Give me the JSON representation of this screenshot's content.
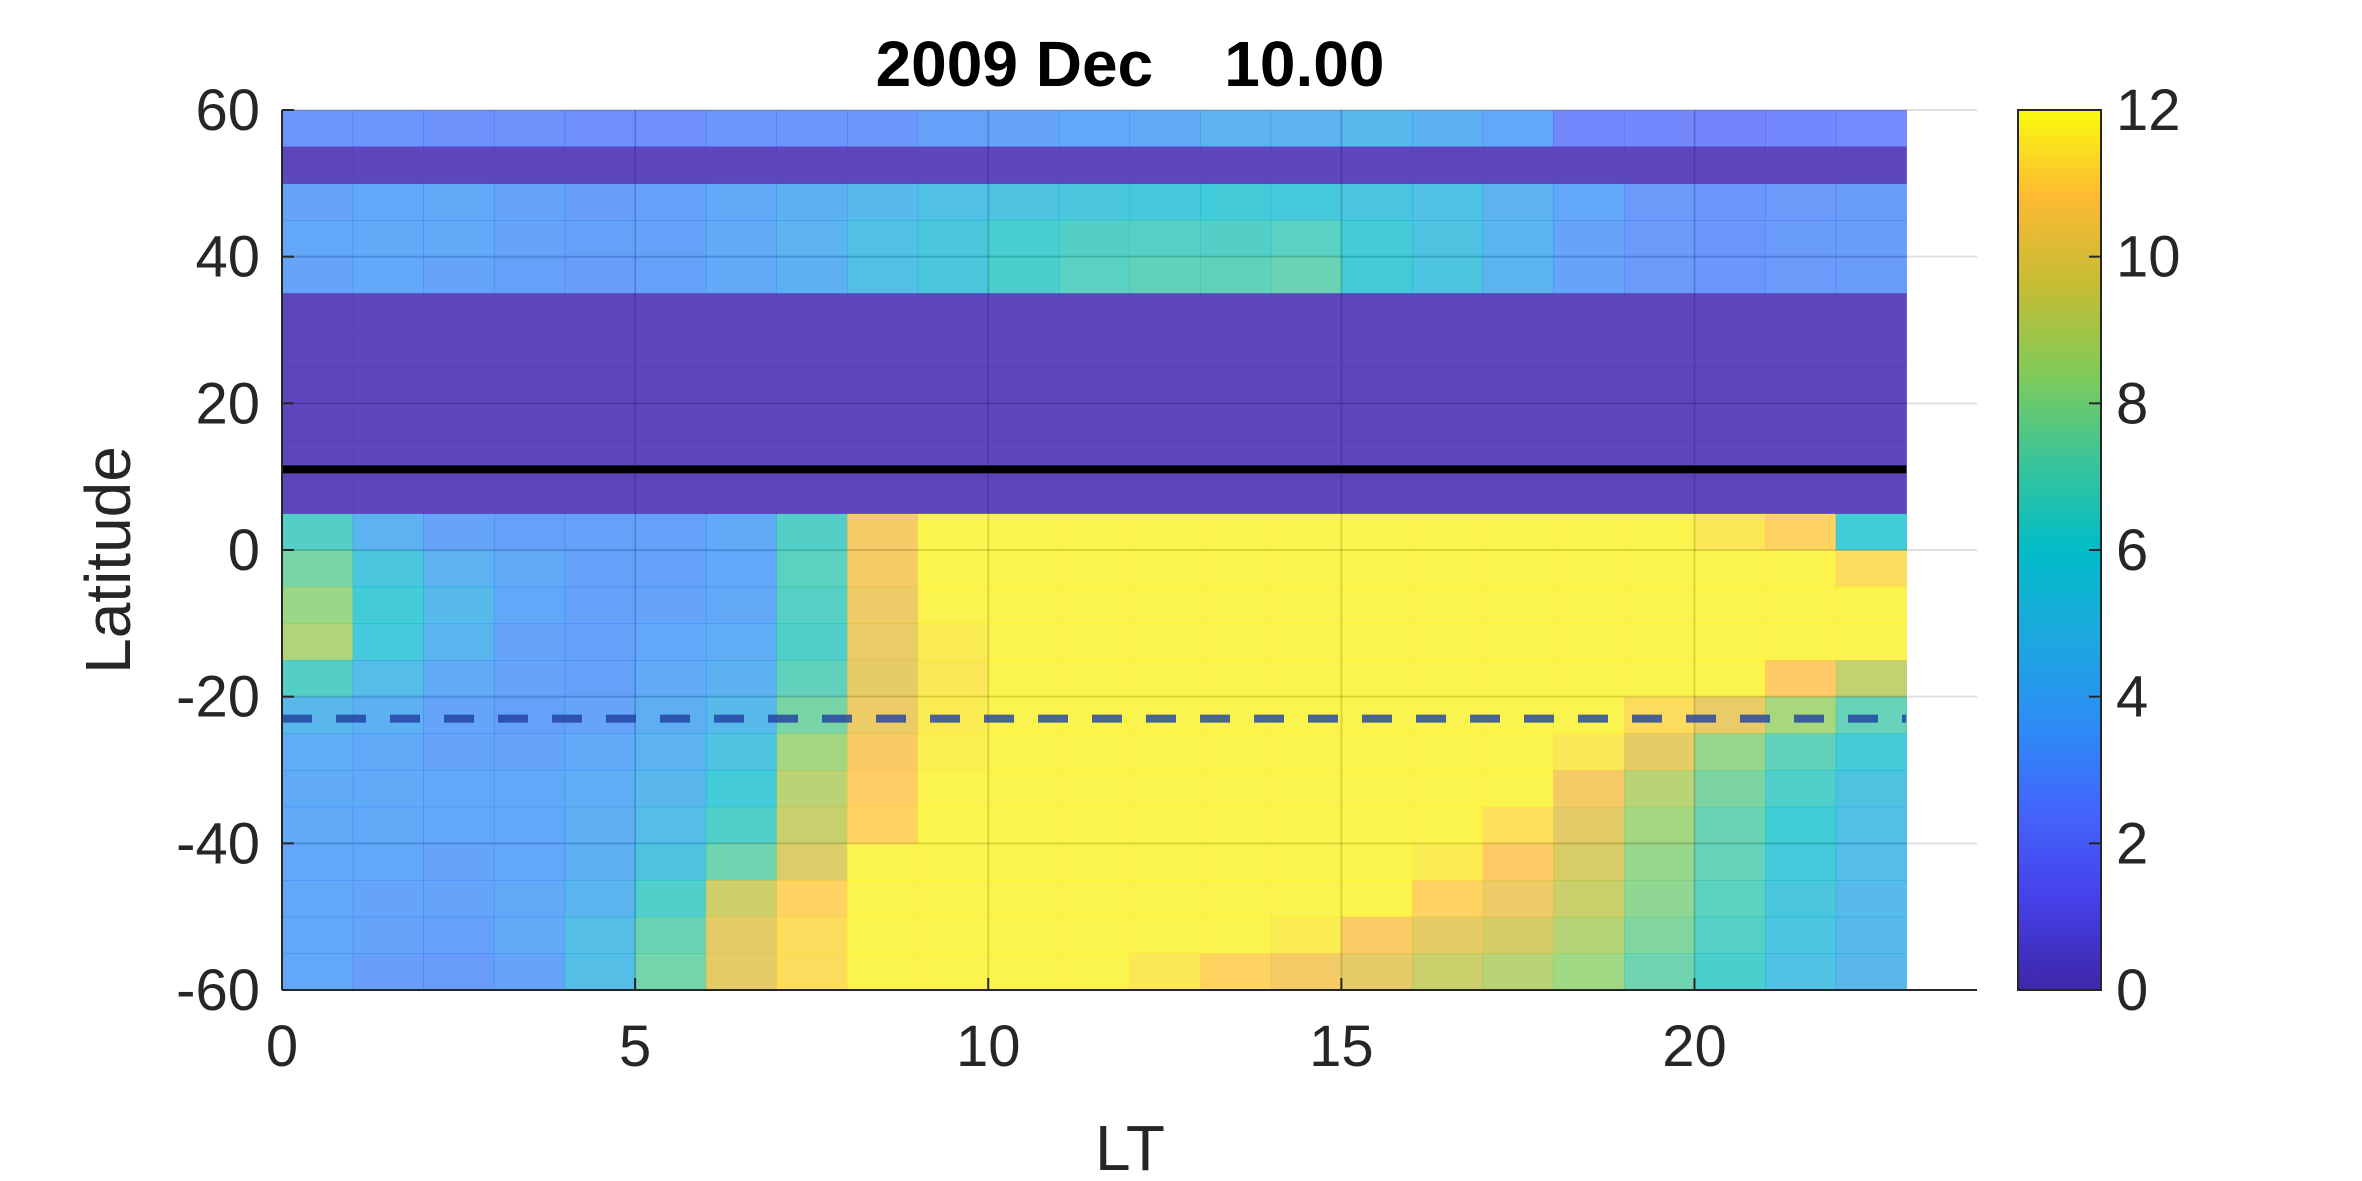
{
  "chart_data": {
    "type": "heatmap",
    "title": "2009 Dec    10.00",
    "xlabel": "LT",
    "ylabel": "Latitude",
    "xlim": [
      0,
      24
    ],
    "ylim": [
      -60,
      60
    ],
    "x_ticks": [
      "0",
      "5",
      "10",
      "15",
      "20"
    ],
    "y_ticks": [
      "60",
      "40",
      "20",
      "0",
      "-20",
      "-40",
      "-60"
    ],
    "colorbar": {
      "clim": [
        0,
        12
      ],
      "ticks": [
        "0",
        "2",
        "4",
        "6",
        "8",
        "10",
        "12"
      ],
      "colormap": "parula"
    },
    "grid": true,
    "x_centers": [
      0.5,
      1.5,
      2.5,
      3.5,
      4.5,
      5.5,
      6.5,
      7.5,
      8.5,
      9.5,
      10.5,
      11.5,
      12.5,
      13.5,
      14.5,
      15.5,
      16.5,
      17.5,
      18.5,
      19.5,
      20.5,
      21.5,
      22.5
    ],
    "lat_centers": [
      57.5,
      52.5,
      47.5,
      42.5,
      37.5,
      32.5,
      27.5,
      22.5,
      17.5,
      12.5,
      7.5,
      2.5,
      -2.5,
      -7.5,
      -12.5,
      -17.5,
      -22.5,
      -27.5,
      -32.5,
      -37.5,
      -42.5,
      -47.5,
      -52.5,
      -57.5
    ],
    "values": [
      [
        2.8,
        2.8,
        2.7,
        2.7,
        2.6,
        2.6,
        2.8,
        2.8,
        2.9,
        3.3,
        3.4,
        3.5,
        3.6,
        4.2,
        4.2,
        4.5,
        4.0,
        3.5,
        2.3,
        2.3,
        2.1,
        2.3,
        2.4
      ],
      [
        0.6,
        0.6,
        0.6,
        0.6,
        0.6,
        0.6,
        0.6,
        0.6,
        0.6,
        0.6,
        0.6,
        0.6,
        0.6,
        0.6,
        0.6,
        0.6,
        0.6,
        0.6,
        0.6,
        0.6,
        0.6,
        0.6,
        0.6
      ],
      [
        3.4,
        3.5,
        3.6,
        3.4,
        3.2,
        3.3,
        3.6,
        4.0,
        4.6,
        5.0,
        5.2,
        5.5,
        5.6,
        5.8,
        5.7,
        5.4,
        5.1,
        4.2,
        3.5,
        3.0,
        2.8,
        3.0,
        3.2
      ],
      [
        3.5,
        3.6,
        3.6,
        3.4,
        3.3,
        3.3,
        3.7,
        4.2,
        5.0,
        5.5,
        6.2,
        6.5,
        6.6,
        6.5,
        6.7,
        5.8,
        5.2,
        4.3,
        3.4,
        3.0,
        2.9,
        3.1,
        3.2
      ],
      [
        3.4,
        3.5,
        3.4,
        3.3,
        3.2,
        3.3,
        3.6,
        4.0,
        4.9,
        5.5,
        6.3,
        6.7,
        6.9,
        6.9,
        7.2,
        5.9,
        5.3,
        4.3,
        3.4,
        3.0,
        2.9,
        3.0,
        3.1
      ],
      [
        0.6,
        0.6,
        0.6,
        0.6,
        0.6,
        0.6,
        0.6,
        0.6,
        0.6,
        0.6,
        0.6,
        0.6,
        0.6,
        0.6,
        0.6,
        0.6,
        0.6,
        0.6,
        0.6,
        0.6,
        0.6,
        0.6,
        0.6
      ],
      [
        0.6,
        0.6,
        0.6,
        0.6,
        0.6,
        0.6,
        0.6,
        0.6,
        0.6,
        0.6,
        0.6,
        0.6,
        0.6,
        0.6,
        0.6,
        0.6,
        0.6,
        0.6,
        0.6,
        0.6,
        0.6,
        0.6,
        0.6
      ],
      [
        0.6,
        0.6,
        0.6,
        0.6,
        0.6,
        0.6,
        0.6,
        0.6,
        0.6,
        0.6,
        0.6,
        0.6,
        0.6,
        0.6,
        0.6,
        0.6,
        0.6,
        0.6,
        0.6,
        0.6,
        0.6,
        0.6,
        0.6
      ],
      [
        0.6,
        0.6,
        0.6,
        0.6,
        0.6,
        0.6,
        0.6,
        0.6,
        0.6,
        0.6,
        0.6,
        0.6,
        0.6,
        0.6,
        0.6,
        0.6,
        0.6,
        0.6,
        0.6,
        0.6,
        0.6,
        0.6,
        0.6
      ],
      [
        0.6,
        0.6,
        0.6,
        0.6,
        0.6,
        0.6,
        0.6,
        0.6,
        0.6,
        0.6,
        0.6,
        0.6,
        0.6,
        0.6,
        0.6,
        0.6,
        0.6,
        0.6,
        0.6,
        0.6,
        0.6,
        0.6,
        0.6
      ],
      [
        0.6,
        0.6,
        0.6,
        0.6,
        0.6,
        0.6,
        0.6,
        0.6,
        0.6,
        0.6,
        0.6,
        0.6,
        0.6,
        0.6,
        0.6,
        0.6,
        0.6,
        0.6,
        0.6,
        0.6,
        0.6,
        0.6,
        0.6
      ],
      [
        6.5,
        4.2,
        3.4,
        3.3,
        3.3,
        3.3,
        3.6,
        6.5,
        10.5,
        11.8,
        11.8,
        11.8,
        11.8,
        11.8,
        11.8,
        11.8,
        11.8,
        11.8,
        11.8,
        11.8,
        11.5,
        11.0,
        6.0
      ],
      [
        7.5,
        5.5,
        4.2,
        3.6,
        3.3,
        3.3,
        3.5,
        6.8,
        10.5,
        11.8,
        11.8,
        11.8,
        11.8,
        11.8,
        11.8,
        11.8,
        11.8,
        11.8,
        11.8,
        11.8,
        11.8,
        11.8,
        11.2
      ],
      [
        8.3,
        5.9,
        4.6,
        3.5,
        3.3,
        3.4,
        3.6,
        6.6,
        10.3,
        11.8,
        11.8,
        11.8,
        11.8,
        11.8,
        11.8,
        11.8,
        11.8,
        11.8,
        11.8,
        11.8,
        11.8,
        11.8,
        11.8
      ],
      [
        8.8,
        5.7,
        4.3,
        3.4,
        3.3,
        3.5,
        3.8,
        6.4,
        10.2,
        11.6,
        11.8,
        11.8,
        11.8,
        11.8,
        11.8,
        11.8,
        11.8,
        11.8,
        11.8,
        11.8,
        11.8,
        11.8,
        11.8
      ],
      [
        6.5,
        4.7,
        3.7,
        3.4,
        3.3,
        3.6,
        4.1,
        6.9,
        10.1,
        11.5,
        11.8,
        11.8,
        11.8,
        11.8,
        11.8,
        11.8,
        11.8,
        11.8,
        11.8,
        11.8,
        11.8,
        10.8,
        9.2
      ],
      [
        4.4,
        4.0,
        3.4,
        3.3,
        3.4,
        3.9,
        4.6,
        7.5,
        10.3,
        11.6,
        11.8,
        11.8,
        11.8,
        11.8,
        11.8,
        11.8,
        11.8,
        11.8,
        11.8,
        11.2,
        10.2,
        8.6,
        7.0
      ],
      [
        3.8,
        3.6,
        3.4,
        3.4,
        3.6,
        4.2,
        5.2,
        8.5,
        10.6,
        11.7,
        11.8,
        11.8,
        11.8,
        11.8,
        11.8,
        11.8,
        11.8,
        11.8,
        11.5,
        10.1,
        8.2,
        6.9,
        5.8
      ],
      [
        3.7,
        3.6,
        3.5,
        3.5,
        3.8,
        4.4,
        5.8,
        9.0,
        10.9,
        11.8,
        11.8,
        11.8,
        11.8,
        11.8,
        11.8,
        11.8,
        11.8,
        11.8,
        10.5,
        9.0,
        7.6,
        6.4,
        5.2
      ],
      [
        3.6,
        3.6,
        3.5,
        3.5,
        3.9,
        4.7,
        6.4,
        9.3,
        11.0,
        11.8,
        11.8,
        11.8,
        11.8,
        11.8,
        11.8,
        11.8,
        11.8,
        11.3,
        10.0,
        8.5,
        7.2,
        6.0,
        4.9
      ],
      [
        3.5,
        3.5,
        3.4,
        3.5,
        4.0,
        5.2,
        7.3,
        9.8,
        11.8,
        11.8,
        11.8,
        11.8,
        11.8,
        11.8,
        11.8,
        11.8,
        11.6,
        10.8,
        9.7,
        8.2,
        7.0,
        5.7,
        4.7
      ],
      [
        3.5,
        3.4,
        3.4,
        3.6,
        4.3,
        6.4,
        9.5,
        11.0,
        11.8,
        11.8,
        11.8,
        11.8,
        11.8,
        11.8,
        11.8,
        11.8,
        11.0,
        10.3,
        9.4,
        8.0,
        6.8,
        5.5,
        4.6
      ],
      [
        3.5,
        3.4,
        3.3,
        3.6,
        4.8,
        7.2,
        10.0,
        11.2,
        11.8,
        11.8,
        11.8,
        11.8,
        11.8,
        11.8,
        11.6,
        10.7,
        10.1,
        9.6,
        8.9,
        7.7,
        6.6,
        5.3,
        4.5
      ],
      [
        3.5,
        3.2,
        3.1,
        3.4,
        4.8,
        7.4,
        10.0,
        11.2,
        11.8,
        11.8,
        11.8,
        11.8,
        11.5,
        11.0,
        10.5,
        10.0,
        9.4,
        9.0,
        8.4,
        7.3,
        6.3,
        5.1,
        4.4
      ]
    ],
    "overlay_rows": {
      "latitudes": [
        52.5,
        32.5,
        27.5,
        22.5,
        17.5,
        12.5,
        7.5
      ],
      "color": "#5a3fb5",
      "opacity": 0.8
    },
    "lines": [
      {
        "y": 11,
        "style": "solid",
        "color": "#000000"
      },
      {
        "y": -23,
        "style": "dashed",
        "color": "#1f3f9f"
      }
    ]
  }
}
